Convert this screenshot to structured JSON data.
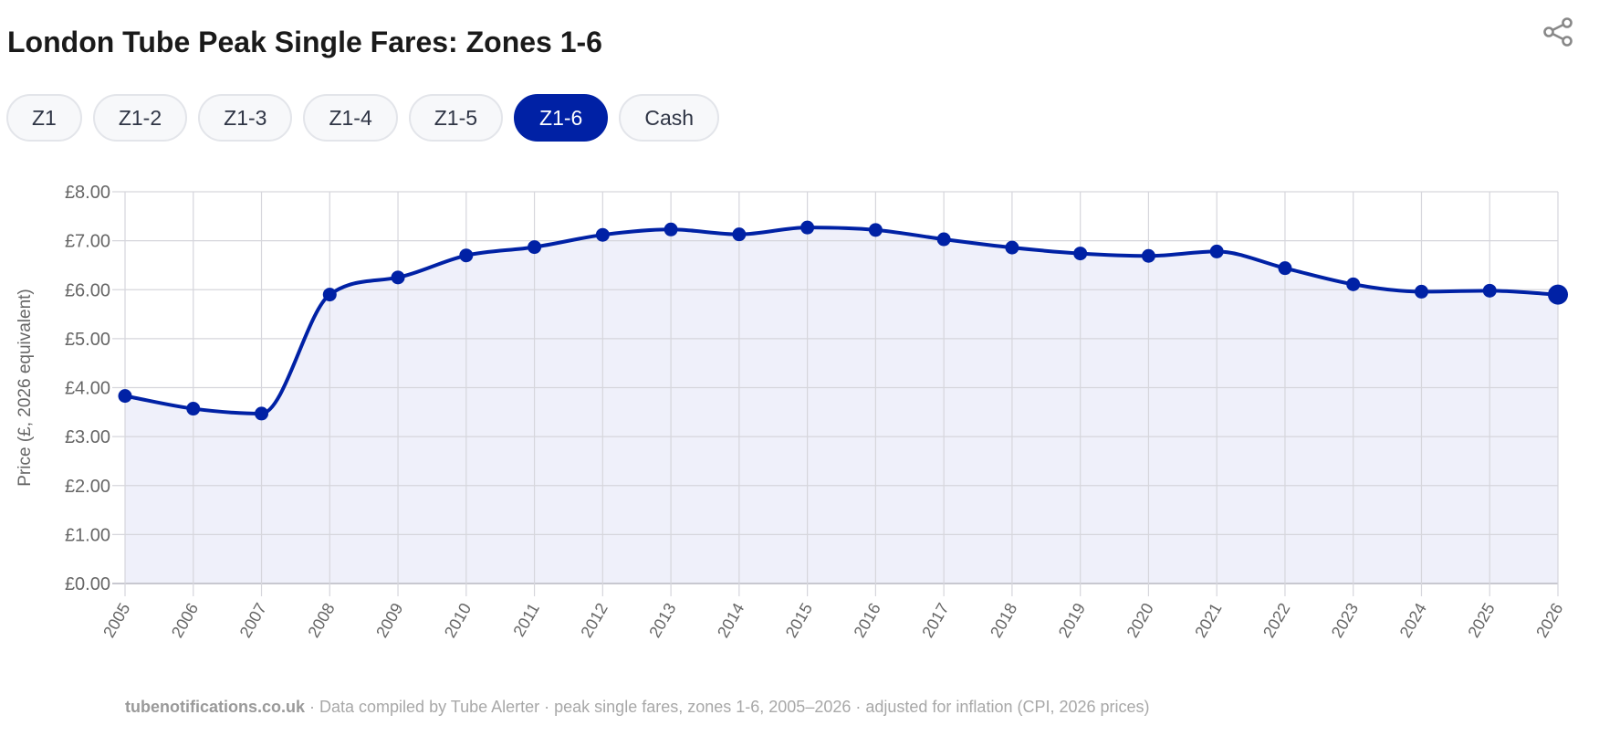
{
  "header": {
    "title": "London Tube Peak Single Fares: Zones 1-6",
    "share_icon": "share-icon"
  },
  "tabs": [
    {
      "label": "Z1",
      "active": false
    },
    {
      "label": "Z1-2",
      "active": false
    },
    {
      "label": "Z1-3",
      "active": false
    },
    {
      "label": "Z1-4",
      "active": false
    },
    {
      "label": "Z1-5",
      "active": false
    },
    {
      "label": "Z1-6",
      "active": true
    },
    {
      "label": "Cash",
      "active": false
    }
  ],
  "colors": {
    "accent": "#0021a5",
    "fill": "#eff0fa",
    "grid": "#d6d6dc"
  },
  "chart_data": {
    "type": "line",
    "title": "",
    "ylabel": "Price (£, 2026 equivalent)",
    "xlabel": "",
    "ylim": [
      0,
      8
    ],
    "yticks": [
      "£0.00",
      "£1.00",
      "£2.00",
      "£3.00",
      "£4.00",
      "£5.00",
      "£6.00",
      "£7.00",
      "£8.00"
    ],
    "grid": true,
    "area_fill": true,
    "x": [
      "2005",
      "2006",
      "2007",
      "2008",
      "2009",
      "2010",
      "2011",
      "2012",
      "2013",
      "2014",
      "2015",
      "2016",
      "2017",
      "2018",
      "2019",
      "2020",
      "2021",
      "2022",
      "2023",
      "2024",
      "2025",
      "2026"
    ],
    "values": [
      3.83,
      3.57,
      3.47,
      5.9,
      6.25,
      6.7,
      6.87,
      7.12,
      7.23,
      7.13,
      7.27,
      7.22,
      7.03,
      6.86,
      6.74,
      6.69,
      6.78,
      6.44,
      6.11,
      5.96,
      5.98,
      5.9
    ]
  },
  "footer": {
    "site": "tubenotifications.co.uk",
    "note": " · Data compiled by Tube Alerter · peak single fares, zones 1-6, 2005–2026 · adjusted for inflation (CPI, 2026 prices)"
  }
}
